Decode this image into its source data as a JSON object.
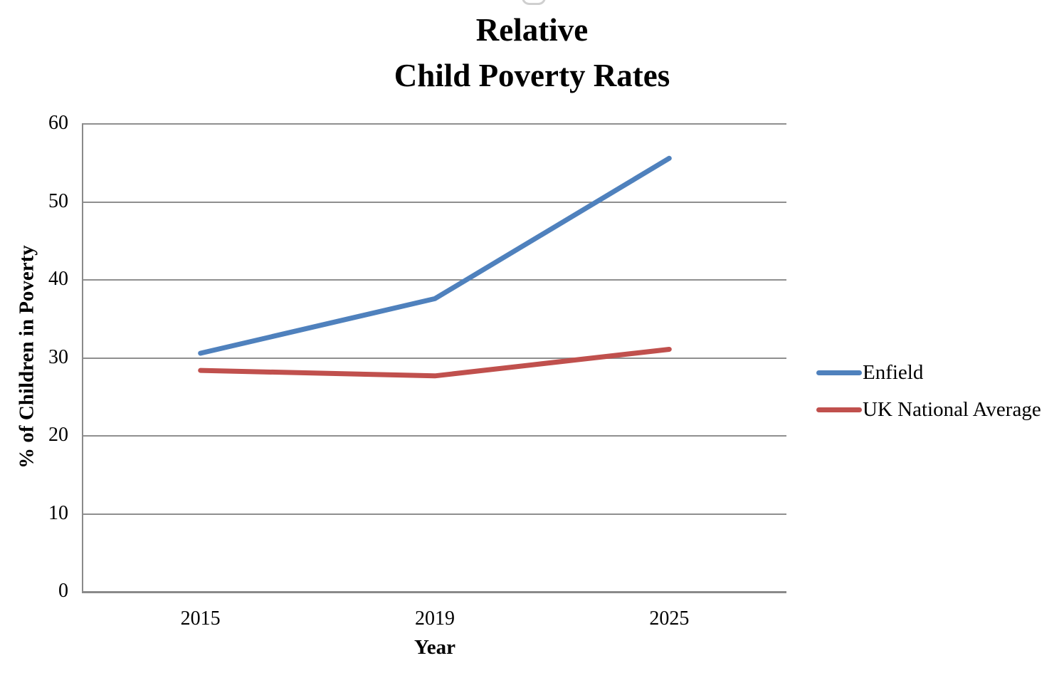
{
  "title": {
    "line1": "Relative",
    "line2": "Child Poverty Rates"
  },
  "chart_data": {
    "type": "line",
    "title": "Relative Child Poverty Rates",
    "categories": [
      "2015",
      "2019",
      "2025"
    ],
    "series": [
      {
        "name": "Enfield",
        "color": "#4F81BD",
        "values": [
          30.5,
          37.5,
          55.5
        ]
      },
      {
        "name": "UK National Average",
        "color": "#C0504D",
        "values": [
          28.3,
          27.6,
          31
        ]
      }
    ],
    "xlabel": "Year",
    "ylabel": "% of Children in Poverty",
    "ylim": [
      0,
      60
    ],
    "yticks": [
      0,
      10,
      20,
      30,
      40,
      50,
      60
    ],
    "grid": "horizontal",
    "legend_position": "right"
  },
  "colors": {
    "grid": "#8F8F8F",
    "axis": "#8A8A8A",
    "text": "#000000",
    "background": "#FFFFFF"
  }
}
